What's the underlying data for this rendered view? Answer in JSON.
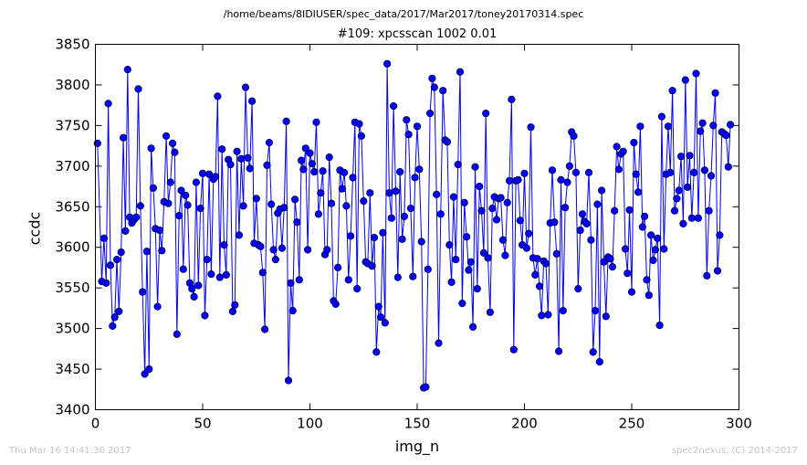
{
  "suptitle": "/home/beams/8IDIUSER/spec_data/2017/Mar2017/toney20170314.spec",
  "footer": {
    "left": "Thu Mar 16 14:41:36 2017",
    "right": "spec2nexus, (C) 2014-2017"
  },
  "colors": {
    "series": "#0000ff",
    "axes": "#000000",
    "footer": "#c4c4c4"
  },
  "chart_data": {
    "type": "line",
    "title": "#109: xpcsscan 1002 0.01",
    "xlabel": "img_n",
    "ylabel": "ccdc",
    "xlim": [
      0,
      300
    ],
    "ylim": [
      3400,
      3850
    ],
    "xticks": [
      0,
      50,
      100,
      150,
      200,
      250,
      300
    ],
    "yticks": [
      3400,
      3450,
      3500,
      3550,
      3600,
      3650,
      3700,
      3750,
      3800,
      3850
    ],
    "grid": false,
    "markers": "circle",
    "series": [
      {
        "x": [
          1,
          3,
          4,
          5,
          6,
          7,
          8,
          9,
          10,
          11,
          12,
          13,
          14,
          15,
          16,
          17,
          18,
          19,
          20,
          21,
          22,
          23,
          24,
          25,
          26,
          27,
          28,
          29,
          30,
          31,
          32,
          33,
          34,
          35,
          36,
          37,
          38,
          39,
          40,
          41,
          42,
          43,
          44,
          45,
          46,
          47,
          48,
          49,
          50,
          51,
          52,
          53,
          54,
          55,
          56,
          57,
          58,
          59,
          60,
          61,
          62,
          63,
          64,
          65,
          66,
          67,
          68,
          69,
          70,
          71,
          72,
          73,
          74,
          75,
          76,
          77,
          78,
          79,
          80,
          81,
          82,
          83,
          84,
          85,
          86,
          87,
          88,
          89,
          90,
          91,
          92,
          93,
          94,
          95,
          96,
          97,
          98,
          99,
          100,
          101,
          102,
          103,
          104,
          105,
          106,
          107,
          108,
          109,
          110,
          111,
          112,
          113,
          114,
          115,
          116,
          117,
          118,
          119,
          120,
          121,
          122,
          123,
          124,
          125,
          126,
          127,
          128,
          129,
          130,
          131,
          132,
          133,
          134,
          135,
          136,
          137,
          138,
          139,
          140,
          141,
          142,
          143,
          144,
          145,
          146,
          147,
          148,
          149,
          150,
          151,
          152,
          153,
          154,
          155,
          156,
          157,
          158,
          159,
          160,
          161,
          162,
          163,
          164,
          165,
          166,
          167,
          168,
          169,
          170,
          171,
          172,
          173,
          174,
          175,
          176,
          177,
          178,
          179,
          180,
          181,
          182,
          183,
          184,
          185,
          186,
          187,
          188,
          189,
          190,
          191,
          192,
          193,
          194,
          195,
          196,
          197,
          198,
          199,
          200,
          201,
          202,
          203,
          204,
          205,
          206,
          207,
          208,
          209,
          210,
          211,
          212,
          213,
          214,
          215,
          216,
          217,
          218,
          219,
          220,
          221,
          222,
          223,
          224,
          225,
          226,
          227,
          228,
          229,
          230,
          231,
          232,
          233,
          234,
          235,
          236,
          237,
          238,
          239,
          240,
          241,
          242,
          243,
          244,
          245,
          246,
          247,
          248,
          249,
          250,
          251,
          252,
          253,
          254,
          255,
          256,
          257,
          258,
          259,
          260,
          261,
          262,
          263,
          264,
          265,
          266,
          267,
          268,
          269,
          270,
          271,
          272,
          273,
          274,
          275,
          276,
          277,
          278,
          279,
          280,
          281,
          282,
          283,
          284,
          285,
          286,
          287,
          288,
          289,
          290,
          291,
          292,
          293,
          294,
          295,
          296
        ],
        "y": [
          3728,
          3558,
          3611,
          3556,
          3777,
          3578,
          3503,
          3514,
          3585,
          3521,
          3594,
          3735,
          3620,
          3819,
          3637,
          3630,
          3634,
          3637,
          3795,
          3651,
          3545,
          3444,
          3595,
          3450,
          3722,
          3673,
          3623,
          3527,
          3621,
          3596,
          3656,
          3737,
          3654,
          3680,
          3728,
          3717,
          3493,
          3639,
          3670,
          3573,
          3664,
          3652,
          3556,
          3549,
          3539,
          3680,
          3553,
          3648,
          3691,
          3516,
          3585,
          3690,
          3567,
          3684,
          3687,
          3786,
          3563,
          3721,
          3603,
          3566,
          3708,
          3702,
          3521,
          3529,
          3718,
          3615,
          3709,
          3651,
          3797,
          3710,
          3697,
          3780,
          3605,
          3660,
          3603,
          3601,
          3569,
          3499,
          3701,
          3729,
          3653,
          3597,
          3585,
          3642,
          3647,
          3599,
          3649,
          3755,
          3436,
          3556,
          3522,
          3659,
          3631,
          3560,
          3707,
          3696,
          3722,
          3597,
          3716,
          3703,
          3693,
          3754,
          3641,
          3667,
          3694,
          3591,
          3597,
          3711,
          3654,
          3534,
          3530,
          3575,
          3695,
          3672,
          3692,
          3651,
          3560,
          3614,
          3686,
          3754,
          3549,
          3752,
          3737,
          3657,
          3582,
          3580,
          3667,
          3577,
          3612,
          3471,
          3527,
          3514,
          3618,
          3507,
          3826,
          3667,
          3636,
          3774,
          3669,
          3563,
          3693,
          3610,
          3638,
          3757,
          3739,
          3648,
          3564,
          3686,
          3749,
          3696,
          3607,
          3427,
          3428,
          3573,
          3765,
          3808,
          3797,
          3665,
          3482,
          3641,
          3793,
          3732,
          3730,
          3603,
          3557,
          3662,
          3585,
          3702,
          3816,
          3531,
          3655,
          3613,
          3572,
          3582,
          3502,
          3699,
          3549,
          3675,
          3645,
          3593,
          3765,
          3587,
          3520,
          3648,
          3662,
          3634,
          3660,
          3661,
          3609,
          3590,
          3655,
          3682,
          3782,
          3474,
          3682,
          3683,
          3633,
          3603,
          3691,
          3599,
          3617,
          3748,
          3587,
          3566,
          3586,
          3552,
          3516,
          3583,
          3580,
          3517,
          3630,
          3695,
          3631,
          3592,
          3472,
          3683,
          3522,
          3649,
          3680,
          3700,
          3742,
          3737,
          3692,
          3549,
          3621,
          3641,
          3632,
          3629,
          3692,
          3609,
          3471,
          3522,
          3653,
          3459,
          3670,
          3582,
          3515,
          3588,
          3586,
          3576,
          3645,
          3724,
          3696,
          3715,
          3718,
          3598,
          3568,
          3646,
          3545,
          3729,
          3690,
          3668,
          3749,
          3625,
          3638,
          3560,
          3541,
          3615,
          3584,
          3597,
          3611,
          3504,
          3761,
          3598,
          3690,
          3749,
          3692,
          3793,
          3645,
          3660,
          3670,
          3712,
          3629,
          3806,
          3674,
          3713,
          3636,
          3692,
          3814,
          3636,
          3743,
          3753,
          3695,
          3565,
          3645,
          3688,
          3750,
          3790,
          3571,
          3615,
          3742,
          3740,
          3738,
          3699,
          3751
        ]
      }
    ]
  }
}
